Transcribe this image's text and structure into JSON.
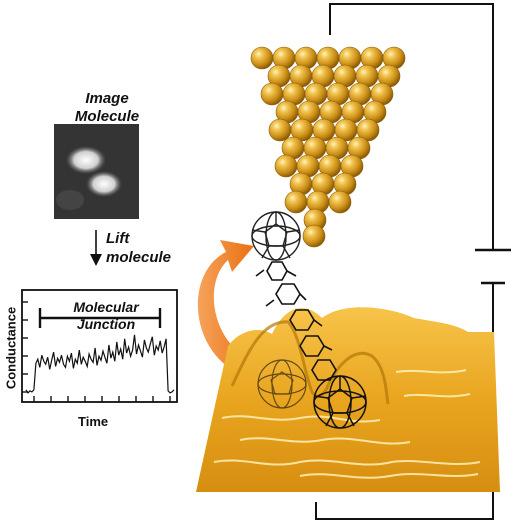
{
  "labels": {
    "image_molecule": [
      "Image",
      "Molecule"
    ],
    "lift_molecule": [
      "Lift",
      "molecule"
    ],
    "molecular_junction": [
      "Molecular",
      "Junction"
    ]
  },
  "chart_data": {
    "type": "line",
    "xlabel": "Time",
    "ylabel": "Conductance",
    "series": [
      {
        "values": [
          0.08,
          0.05,
          0.07,
          0.06,
          0.08,
          0.34,
          0.38,
          0.3,
          0.42,
          0.36,
          0.33,
          0.4,
          0.28,
          0.37,
          0.45,
          0.31,
          0.39,
          0.35,
          0.42,
          0.33,
          0.3,
          0.41,
          0.36,
          0.44,
          0.29,
          0.38,
          0.34,
          0.47,
          0.33,
          0.4,
          0.36,
          0.31,
          0.43,
          0.38,
          0.35,
          0.49,
          0.32,
          0.41,
          0.37,
          0.46,
          0.4,
          0.34,
          0.52,
          0.39,
          0.45,
          0.36,
          0.55,
          0.42,
          0.48,
          0.38,
          0.58,
          0.44,
          0.5,
          0.41,
          0.47,
          0.62,
          0.43,
          0.52,
          0.46,
          0.4,
          0.57,
          0.49,
          0.45,
          0.53,
          0.6,
          0.42,
          0.51,
          0.47,
          0.56,
          0.44,
          0.5,
          0.58,
          0.07,
          0.05,
          0.06,
          0.08
        ]
      }
    ]
  },
  "colors": {
    "tip_gold": "#d9a52a",
    "surface_gold": "#e8a81e",
    "arrow_orange": "#f07d1c"
  }
}
